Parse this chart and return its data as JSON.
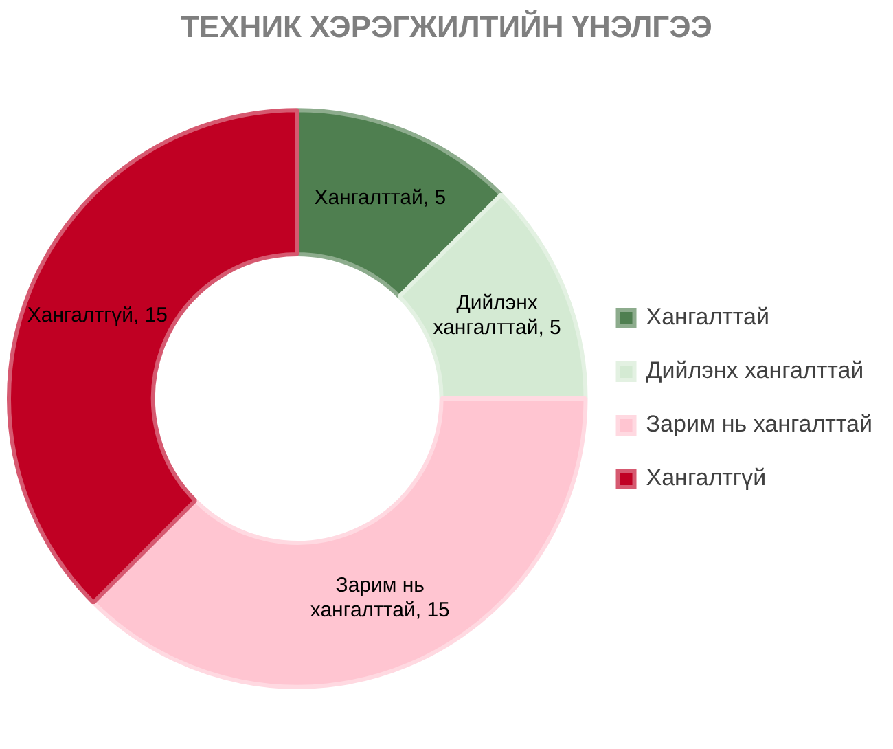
{
  "chart_data": {
    "type": "donut",
    "title": "ТЕХНИК ХЭРЭГЖИЛТИЙН ҮНЭЛГЭЭ",
    "categories": [
      "Хангалттай",
      "Дийлэнх хангалттай",
      "Зарим нь хангалттай",
      "Хангалтгүй"
    ],
    "values": [
      5,
      5,
      15,
      15
    ],
    "colors": [
      "#4f7f50",
      "#d4ead3",
      "#ffc5d1",
      "#c00023"
    ],
    "value_labels": [
      "Хангалттай, 5",
      "Дийлэнх хангалттай, 5",
      "Зарим нь хангалттай, 15",
      "Хангалтгүй, 15"
    ],
    "legend": "right"
  }
}
